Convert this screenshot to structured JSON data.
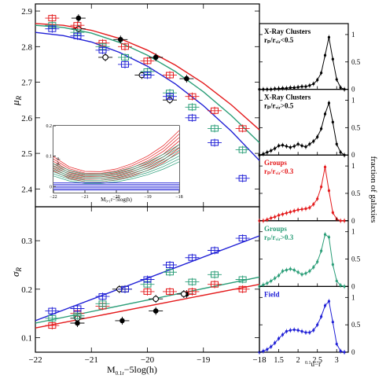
{
  "figure": {
    "left_xlabel": "M",
    "left_xlabel_sub": "0.1",
    "left_xlabel_sub2": "r",
    "left_xlabel_rest": "−5log(h)",
    "right_xlabel": "u−r",
    "right_xlabel_pre": "0.1",
    "right_ylabel": "fraction of galaxies",
    "top_ylabel": "μ",
    "top_ylabel_sub": "R",
    "bottom_ylabel": "σ",
    "bottom_ylabel_sub": "R",
    "inset_xlabel": "M₀.₁r−5log(h)",
    "inset_ylabel": "μ−μ",
    "colors": {
      "xray_inner": "#000000",
      "xray_outer": "#000000",
      "groups_inner": "#e41a1c",
      "groups_outer": "#2b9e78",
      "field": "#1f1fd6"
    }
  },
  "chart_data": [
    {
      "type": "scatter",
      "panel": "top-left",
      "ylabel": "μR",
      "xlim": [
        -22,
        -18
      ],
      "ylim": [
        2.35,
        2.92
      ],
      "x_ticks": [
        "-22",
        "-21",
        "-20",
        "-19",
        "-18"
      ],
      "y_ticks": [
        "2.4",
        "2.5",
        "2.6",
        "2.7",
        "2.8",
        "2.9"
      ],
      "series": [
        {
          "color": "#000000",
          "marker": "filled-circle",
          "x": [
            -21.23,
            -20.48,
            -19.85,
            -19.3
          ],
          "y": [
            2.88,
            2.82,
            2.77,
            2.71
          ]
        },
        {
          "color": "#000000",
          "marker": "open-circle",
          "x": [
            -21.23,
            -20.75,
            -20.1,
            -19.6
          ],
          "y": [
            2.85,
            2.77,
            2.72,
            2.65
          ]
        },
        {
          "color": "#e41a1c",
          "marker": "open-square",
          "x": [
            -21.7,
            -21.25,
            -20.8,
            -20.4,
            -20.0,
            -19.6,
            -19.2,
            -18.8,
            -18.3
          ],
          "y": [
            2.88,
            2.86,
            2.81,
            2.8,
            2.76,
            2.72,
            2.66,
            2.62,
            2.57
          ]
        },
        {
          "color": "#2b9e78",
          "marker": "open-square",
          "x": [
            -21.7,
            -21.25,
            -20.8,
            -20.4,
            -20.0,
            -19.6,
            -19.2,
            -18.8,
            -18.3
          ],
          "y": [
            2.86,
            2.84,
            2.8,
            2.77,
            2.73,
            2.67,
            2.63,
            2.57,
            2.51
          ]
        },
        {
          "color": "#1f1fd6",
          "marker": "open-square",
          "x": [
            -21.7,
            -21.25,
            -20.8,
            -20.4,
            -20.0,
            -19.6,
            -19.2,
            -18.8,
            -18.3
          ],
          "y": [
            2.85,
            2.83,
            2.79,
            2.75,
            2.72,
            2.66,
            2.6,
            2.53,
            2.43
          ]
        }
      ],
      "fits": [
        {
          "color": "#e41a1c",
          "x": [
            -22,
            -21.5,
            -21,
            -20.5,
            -20,
            -19.5,
            -19,
            -18.5,
            -18
          ],
          "y": [
            2.865,
            2.86,
            2.846,
            2.823,
            2.79,
            2.748,
            2.697,
            2.636,
            2.566
          ]
        },
        {
          "color": "#2b9e78",
          "x": [
            -22,
            -21.5,
            -21,
            -20.5,
            -20,
            -19.5,
            -19,
            -18.5,
            -18
          ],
          "y": [
            2.86,
            2.854,
            2.838,
            2.812,
            2.776,
            2.73,
            2.673,
            2.606,
            2.53
          ]
        },
        {
          "color": "#1f1fd6",
          "x": [
            -22,
            -21.5,
            -21,
            -20.5,
            -20,
            -19.5,
            -19,
            -18.5,
            -18
          ],
          "y": [
            2.84,
            2.831,
            2.813,
            2.784,
            2.745,
            2.695,
            2.634,
            2.562,
            2.48
          ]
        }
      ]
    },
    {
      "type": "line",
      "panel": "inset",
      "xlim": [
        -22,
        -18
      ],
      "ylim": [
        -0.02,
        0.2
      ],
      "x_ticks": [
        "-22",
        "-21",
        "-20",
        "-19",
        "-18"
      ],
      "y_ticks": [
        "0",
        "0.1",
        "0.2"
      ],
      "series": [
        {
          "color": "#e41a1c",
          "x": [
            -22,
            -21.5,
            -21,
            -20.5,
            -20,
            -19.5,
            -19,
            -18.5,
            -18
          ],
          "y": [
            0.075,
            0.046,
            0.033,
            0.032,
            0.04,
            0.055,
            0.077,
            0.107,
            0.15
          ]
        },
        {
          "color": "#2b9e78",
          "x": [
            -22,
            -21.5,
            -21,
            -20.5,
            -20,
            -19.5,
            -19,
            -18.5,
            -18
          ],
          "y": [
            0.055,
            0.036,
            0.026,
            0.026,
            0.032,
            0.044,
            0.06,
            0.082,
            0.11
          ]
        },
        {
          "color": "#1f1fd6",
          "x": [
            -22,
            -21.5,
            -21,
            -20.5,
            -20,
            -19.5,
            -19,
            -18.5,
            -18
          ],
          "y": [
            0.0,
            0.0,
            0.0,
            0.0,
            0.0,
            0.0,
            0.0,
            0.0,
            0.0
          ]
        }
      ]
    },
    {
      "type": "scatter",
      "panel": "bottom-left",
      "ylabel": "σR",
      "xlim": [
        -22,
        -18
      ],
      "ylim": [
        0.07,
        0.37
      ],
      "x_ticks": [
        "-22",
        "-21",
        "-20",
        "-19",
        "-18"
      ],
      "y_ticks": [
        "0.1",
        "0.2",
        "0.3"
      ],
      "series": [
        {
          "color": "#000000",
          "marker": "filled-circle",
          "x": [
            -21.25,
            -20.45,
            -19.85,
            -19.3
          ],
          "y": [
            0.13,
            0.135,
            0.155,
            0.19
          ]
        },
        {
          "color": "#000000",
          "marker": "open-circle",
          "x": [
            -21.25,
            -20.5,
            -19.85,
            -19.35
          ],
          "y": [
            0.14,
            0.2,
            0.18,
            0.19
          ]
        },
        {
          "color": "#e41a1c",
          "marker": "open-square",
          "x": [
            -21.7,
            -21.25,
            -20.8,
            -20.4,
            -20.0,
            -19.6,
            -19.2,
            -18.8,
            -18.3
          ],
          "y": [
            0.125,
            0.15,
            0.165,
            0.2,
            0.195,
            0.195,
            0.195,
            0.21,
            0.2
          ]
        },
        {
          "color": "#2b9e78",
          "marker": "open-square",
          "x": [
            -21.7,
            -21.25,
            -20.8,
            -20.4,
            -20.0,
            -19.6,
            -19.2,
            -18.8,
            -18.3
          ],
          "y": [
            0.14,
            0.145,
            0.17,
            0.2,
            0.21,
            0.235,
            0.215,
            0.23,
            0.22
          ]
        },
        {
          "color": "#1f1fd6",
          "marker": "open-square",
          "x": [
            -21.7,
            -21.25,
            -20.8,
            -20.4,
            -20.0,
            -19.6,
            -19.2,
            -18.8,
            -18.3
          ],
          "y": [
            0.155,
            0.16,
            0.185,
            0.2,
            0.22,
            0.25,
            0.265,
            0.28,
            0.305
          ]
        }
      ],
      "fits": [
        {
          "color": "#e41a1c",
          "x": [
            -22,
            -18
          ],
          "y": [
            0.12,
            0.21
          ]
        },
        {
          "color": "#2b9e78",
          "x": [
            -22,
            -18
          ],
          "y": [
            0.13,
            0.225
          ]
        },
        {
          "color": "#1f1fd6",
          "x": [
            -22,
            -18
          ],
          "y": [
            0.135,
            0.31
          ]
        }
      ]
    },
    {
      "type": "line",
      "panel": "right-stack",
      "xlim": [
        1.0,
        3.3
      ],
      "ylim": [
        0,
        1.2
      ],
      "x_ticks": [
        "1.5",
        "2",
        "2.5",
        "3"
      ],
      "y_ticks": [
        "0",
        "0.5",
        "1"
      ],
      "x": [
        1.0,
        1.1,
        1.2,
        1.3,
        1.4,
        1.5,
        1.6,
        1.7,
        1.8,
        1.9,
        2.0,
        2.1,
        2.2,
        2.3,
        2.4,
        2.5,
        2.6,
        2.7,
        2.8,
        2.9,
        3.0,
        3.1,
        3.2
      ],
      "panels": [
        {
          "label_line1": "X-Ray Clusters",
          "label_line2": "rₚ/rᵥᵢᵣ<0.5",
          "color": "#000000",
          "y": [
            0.0,
            0.0,
            0.0,
            0.0,
            0.01,
            0.01,
            0.02,
            0.02,
            0.03,
            0.03,
            0.04,
            0.05,
            0.05,
            0.07,
            0.1,
            0.17,
            0.3,
            0.62,
            0.95,
            0.55,
            0.18,
            0.03,
            0.0
          ]
        },
        {
          "label_line1": "X-Ray Clusters",
          "label_line2": "rₚ/rᵥᵢᵣ>0.5",
          "color": "#000000",
          "y": [
            0.0,
            0.02,
            0.05,
            0.08,
            0.12,
            0.17,
            0.18,
            0.16,
            0.14,
            0.16,
            0.2,
            0.17,
            0.15,
            0.2,
            0.25,
            0.33,
            0.48,
            0.75,
            0.95,
            0.6,
            0.2,
            0.05,
            0.0
          ]
        },
        {
          "label_line1": "Groups",
          "label_line2": "rₚ/rᵥᵢᵣ<0.3",
          "color": "#e41a1c",
          "y": [
            0.0,
            0.0,
            0.02,
            0.05,
            0.07,
            0.1,
            0.12,
            0.14,
            0.16,
            0.18,
            0.2,
            0.21,
            0.22,
            0.24,
            0.3,
            0.4,
            0.62,
            0.98,
            0.55,
            0.15,
            0.03,
            0.0,
            0.0
          ]
        },
        {
          "label_line1": "Groups",
          "label_line2": "rₚ/rᵥᵢᵣ>0.3",
          "color": "#2b9e78",
          "y": [
            0.0,
            0.03,
            0.06,
            0.1,
            0.15,
            0.2,
            0.28,
            0.3,
            0.32,
            0.3,
            0.26,
            0.22,
            0.24,
            0.28,
            0.35,
            0.45,
            0.65,
            0.95,
            0.9,
            0.4,
            0.1,
            0.02,
            0.0
          ]
        },
        {
          "label_line1": "Field",
          "label_line2": "",
          "color": "#1f1fd6",
          "y": [
            0.0,
            0.02,
            0.05,
            0.1,
            0.17,
            0.25,
            0.32,
            0.38,
            0.4,
            0.41,
            0.4,
            0.38,
            0.36,
            0.36,
            0.4,
            0.5,
            0.65,
            0.85,
            0.93,
            0.55,
            0.15,
            0.02,
            0.0
          ]
        }
      ]
    }
  ]
}
